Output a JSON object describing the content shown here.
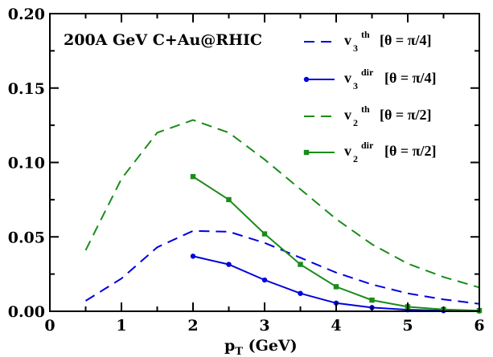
{
  "chart_data": {
    "type": "line",
    "title": "",
    "annotation": "200A GeV C+Au@RHIC",
    "xlabel": {
      "main": "p",
      "sub": "T",
      "unit": " (GeV)"
    },
    "ylabel": "",
    "xlim": [
      0,
      6
    ],
    "ylim": [
      0,
      0.2
    ],
    "xticks": [
      0,
      1,
      2,
      3,
      4,
      5,
      6
    ],
    "xtick_labels": [
      "0",
      "1",
      "2",
      "3",
      "4",
      "5",
      "6"
    ],
    "yticks": [
      0,
      0.05,
      0.1,
      0.15,
      0.2
    ],
    "ytick_labels": [
      "0.00",
      "0.05",
      "0.10",
      "0.15",
      "0.20"
    ],
    "grid": false,
    "legend_position": "top-right",
    "series": [
      {
        "name": "v3 th [θ = π/4]",
        "label_main": "v",
        "label_sub": "3",
        "label_sup": "th",
        "label_rest": "[θ = π/4]",
        "color": "#0000e0",
        "style": "dashed",
        "marker": "none",
        "x": [
          0.5,
          1.0,
          1.5,
          2.0,
          2.5,
          3.0,
          3.5,
          4.0,
          4.5,
          5.0,
          5.5,
          6.0
        ],
        "y": [
          0.007,
          0.022,
          0.043,
          0.054,
          0.0535,
          0.046,
          0.036,
          0.026,
          0.018,
          0.012,
          0.008,
          0.005
        ]
      },
      {
        "name": "v3 dir [θ = π/4]",
        "label_main": "v",
        "label_sub": "3",
        "label_sup": "dir",
        "label_rest": "[θ = π/4]",
        "color": "#0000e0",
        "style": "solid",
        "marker": "circle",
        "x": [
          2.0,
          2.5,
          3.0,
          3.5,
          4.0,
          4.5,
          5.0,
          5.5,
          6.0
        ],
        "y": [
          0.037,
          0.0315,
          0.021,
          0.012,
          0.0055,
          0.0025,
          0.001,
          0.0004,
          0.0002
        ]
      },
      {
        "name": "v2 th [θ = π/2]",
        "label_main": "v",
        "label_sub": "2",
        "label_sup": "th",
        "label_rest": "[θ = π/2]",
        "color": "#1a8c1a",
        "style": "dashed",
        "marker": "none",
        "x": [
          0.5,
          1.0,
          1.5,
          2.0,
          2.5,
          3.0,
          3.5,
          4.0,
          4.5,
          5.0,
          5.5,
          6.0
        ],
        "y": [
          0.041,
          0.089,
          0.12,
          0.1285,
          0.12,
          0.102,
          0.082,
          0.062,
          0.045,
          0.032,
          0.023,
          0.016
        ]
      },
      {
        "name": "v2 dir [θ = π/2]",
        "label_main": "v",
        "label_sub": "2",
        "label_sup": "dir",
        "label_rest": "[θ = π/2]",
        "color": "#1a8c1a",
        "style": "solid",
        "marker": "square",
        "x": [
          2.0,
          2.5,
          3.0,
          3.5,
          4.0,
          4.5,
          5.0,
          5.5,
          6.0
        ],
        "y": [
          0.0905,
          0.075,
          0.052,
          0.0315,
          0.0165,
          0.0075,
          0.003,
          0.0012,
          0.0005
        ]
      }
    ]
  }
}
